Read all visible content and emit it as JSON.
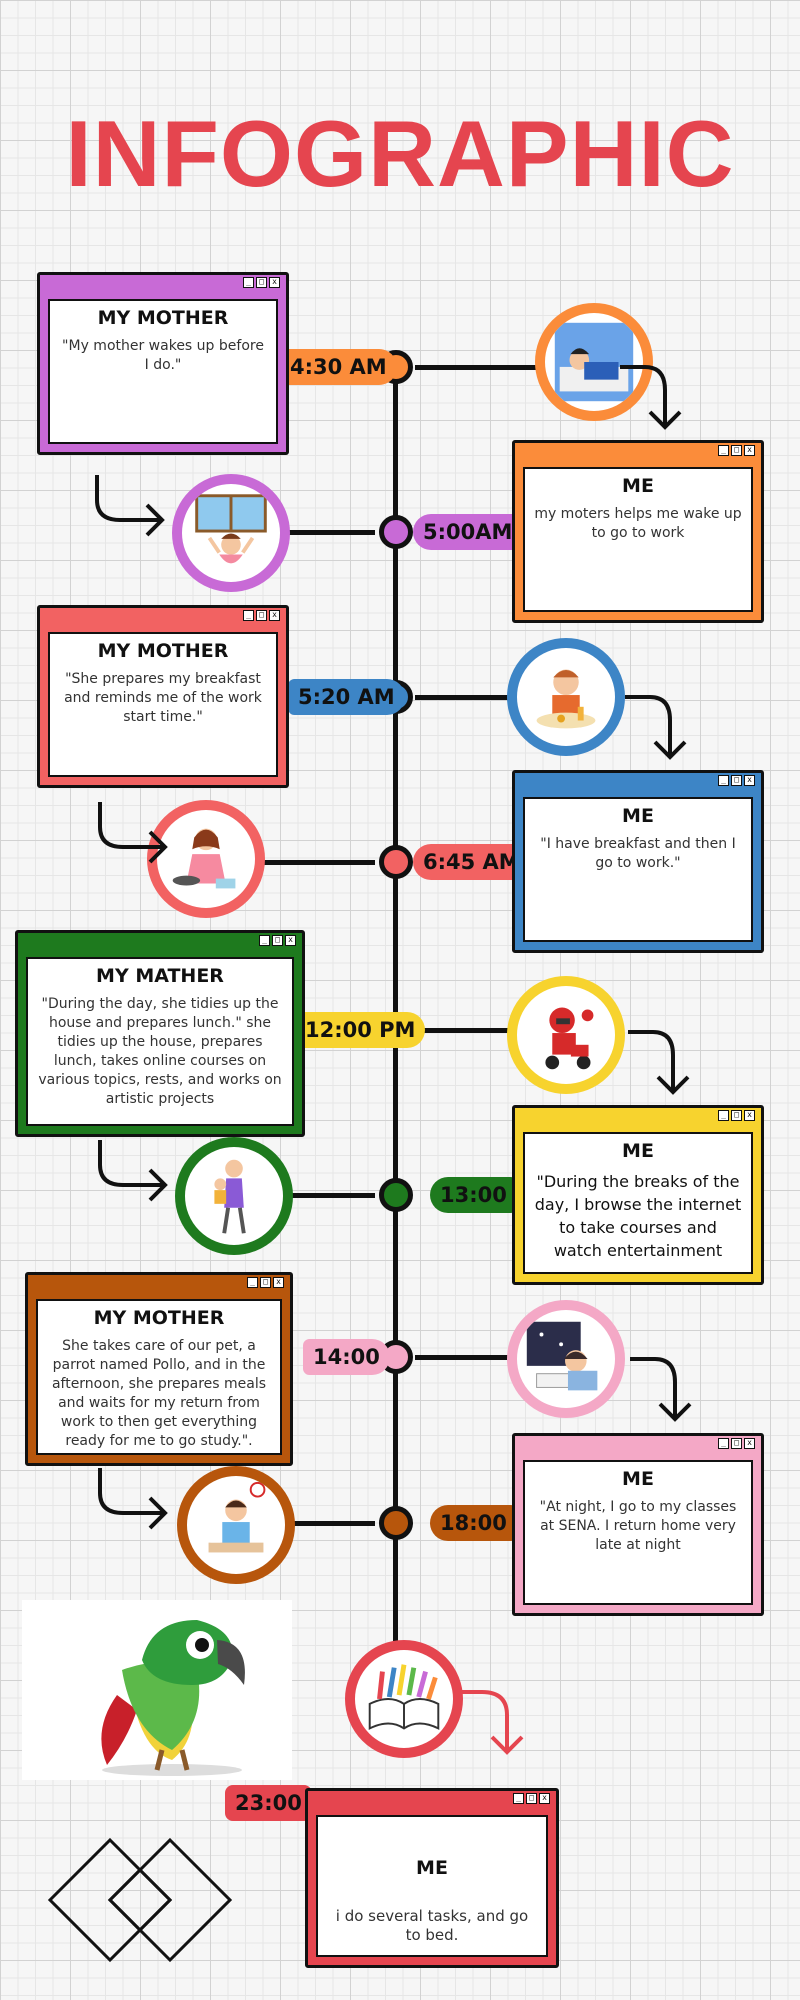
{
  "title": "INFOGRAPHIC",
  "colors": {
    "title": "#e5454f",
    "purple": "#c86ad6",
    "orange": "#fb8c3a",
    "red": "#f26262",
    "blue": "#3d85c6",
    "green": "#1e7a1e",
    "yellow": "#f7d32e",
    "brown": "#b7560c",
    "pink": "#f4a8c6",
    "crimson": "#e5454f"
  },
  "entries": [
    {
      "time": "4:30 AM",
      "side": "mother",
      "heading": "MY MOTHER",
      "text": "\"My mother wakes up before I do.\""
    },
    {
      "time": "5:00AM",
      "side": "me",
      "heading": "ME",
      "text": "my moters helps me wake up to go to work"
    },
    {
      "time": "5:20 AM",
      "side": "mother",
      "heading": "MY MOTHER",
      "text": "\"She prepares my breakfast and reminds me of the work start time.\""
    },
    {
      "time": "6:45 AM",
      "side": "me",
      "heading": "ME",
      "text": "\"I have breakfast and then I go to work.\""
    },
    {
      "time": "12:00 PM",
      "side": "mother",
      "heading": "MY MATHER",
      "text": "\"During the day, she tidies up the house and prepares lunch.\"   she tidies up the house, prepares lunch, takes online courses on various topics, rests, and works on artistic projects"
    },
    {
      "time": "13:00",
      "side": "me",
      "heading": "ME",
      "text": "\"During the breaks of the day, I browse the internet to take courses and watch entertainment"
    },
    {
      "time": "14:00",
      "side": "mother",
      "heading": "MY MOTHER",
      "text": "She takes care of our pet, a parrot named Pollo, and in the afternoon, she prepares meals and waits for my return from work to then get everything ready for me to go study.\"."
    },
    {
      "time": "18:00",
      "side": "me",
      "heading": "ME",
      "text": "\"At night, I go to my classes at SENA. I return home very late at night"
    },
    {
      "time": "23:00",
      "side": "me",
      "heading": "ME",
      "text": "i do several tasks, and go to bed."
    }
  ],
  "window_controls": [
    "_",
    "□",
    "x"
  ],
  "icons": [
    "sleeping-person-icon",
    "waking-girl-icon",
    "breakfast-boy-icon",
    "cooking-mother-icon",
    "delivery-rider-icon",
    "mother-child-icon",
    "studying-night-icon",
    "boy-at-desk-icon",
    "open-book-icon",
    "parrot-image",
    "diamond-logo-icon"
  ]
}
